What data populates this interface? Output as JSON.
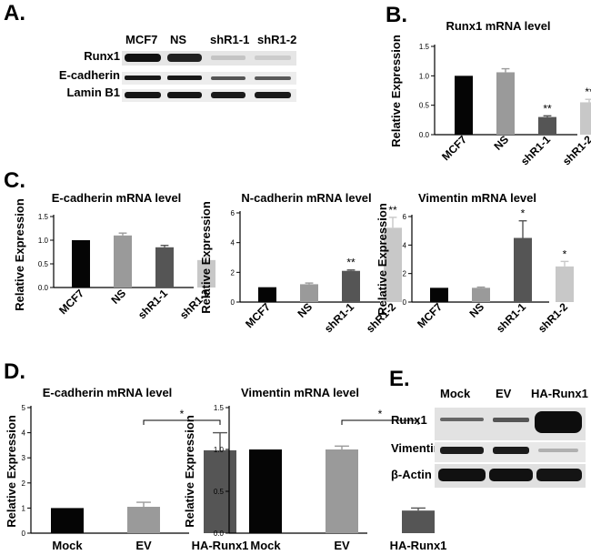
{
  "panels": {
    "A": {
      "letter": "A.",
      "lanes": [
        "MCF7",
        "NS",
        "shR1-1",
        "shR1-2"
      ],
      "rows": [
        "Runx1",
        "E-cadherin",
        "Lamin B1"
      ]
    },
    "E": {
      "letter": "E.",
      "lanes": [
        "Mock",
        "EV",
        "HA-Runx1"
      ],
      "rows": [
        "Runx1",
        "Vimentin",
        "β-Actin"
      ]
    },
    "C_letter": "C.",
    "D_letter": "D.",
    "B_letter": "B."
  },
  "chart_data": [
    {
      "id": "B",
      "type": "bar",
      "title": "Runx1 mRNA level",
      "ylabel": "Relative Expression",
      "categories": [
        "MCF7",
        "NS",
        "shR1-1",
        "shR1-2"
      ],
      "values": [
        1.0,
        1.06,
        0.3,
        0.55
      ],
      "errors": [
        0.0,
        0.06,
        0.02,
        0.05
      ],
      "significance": [
        "",
        "",
        "**",
        "**"
      ],
      "ylim": [
        0,
        1.5
      ],
      "yticks": [
        "0.0",
        "0.5",
        "1.0",
        "1.5"
      ],
      "colors": [
        "#050505",
        "#9a9a9a",
        "#555555",
        "#c8c8c8"
      ]
    },
    {
      "id": "C1",
      "type": "bar",
      "title": "E-cadherin mRNA level",
      "ylabel": "Relative Expression",
      "categories": [
        "MCF7",
        "NS",
        "shR1-1",
        "shR1-2"
      ],
      "values": [
        1.0,
        1.1,
        0.85,
        0.58
      ],
      "errors": [
        0.0,
        0.05,
        0.04,
        0.07
      ],
      "significance": [
        "",
        "",
        "",
        ""
      ],
      "ylim": [
        0,
        1.5
      ],
      "yticks": [
        "0.0",
        "0.5",
        "1.0",
        "1.5"
      ],
      "colors": [
        "#050505",
        "#9a9a9a",
        "#555555",
        "#c8c8c8"
      ]
    },
    {
      "id": "C2",
      "type": "bar",
      "title": "N-cadherin mRNA level",
      "ylabel": "Relative Expression",
      "categories": [
        "MCF7",
        "NS",
        "shR1-1",
        "shR1-2"
      ],
      "values": [
        1.0,
        1.2,
        2.1,
        5.0
      ],
      "errors": [
        0.0,
        0.08,
        0.06,
        0.7
      ],
      "significance": [
        "",
        "",
        "**",
        "**"
      ],
      "ylim": [
        0,
        6
      ],
      "yticks": [
        "0",
        "2",
        "4",
        "6"
      ],
      "colors": [
        "#050505",
        "#9a9a9a",
        "#555555",
        "#c8c8c8"
      ]
    },
    {
      "id": "C3",
      "type": "bar",
      "title": "Vimentin mRNA level",
      "ylabel": "Relative Expression",
      "categories": [
        "MCF7",
        "NS",
        "shR1-1",
        "shR1-2"
      ],
      "values": [
        1.0,
        1.0,
        4.5,
        2.5
      ],
      "errors": [
        0.0,
        0.05,
        1.2,
        0.35
      ],
      "significance": [
        "",
        "",
        "*",
        "*"
      ],
      "ylim": [
        0,
        6
      ],
      "yticks": [
        "0",
        "2",
        "4",
        "6"
      ],
      "colors": [
        "#050505",
        "#9a9a9a",
        "#555555",
        "#c8c8c8"
      ]
    },
    {
      "id": "D1",
      "type": "bar",
      "title": "E-cadherin mRNA level",
      "ylabel": "Relative Expression",
      "categories": [
        "Mock",
        "EV",
        "HA-Runx1"
      ],
      "values": [
        1.0,
        1.05,
        3.3
      ],
      "errors": [
        0.0,
        0.18,
        0.7
      ],
      "bracket": {
        "from": 1,
        "to": 2,
        "label": "*"
      },
      "ylim": [
        0,
        5
      ],
      "yticks": [
        "0",
        "1",
        "2",
        "3",
        "4",
        "5"
      ],
      "colors": [
        "#050505",
        "#9a9a9a",
        "#555555"
      ]
    },
    {
      "id": "D2",
      "type": "bar",
      "title": "Vimentin mRNA level",
      "ylabel": "Relative Expression",
      "categories": [
        "Mock",
        "EV",
        "HA-Runx1"
      ],
      "values": [
        1.0,
        1.0,
        0.27
      ],
      "errors": [
        0.0,
        0.04,
        0.03
      ],
      "bracket": {
        "from": 1,
        "to": 2,
        "label": "*"
      },
      "ylim": [
        0,
        1.5
      ],
      "yticks": [
        "0.0",
        "0.5",
        "1.0",
        "1.5"
      ],
      "colors": [
        "#050505",
        "#9a9a9a",
        "#555555"
      ]
    }
  ]
}
